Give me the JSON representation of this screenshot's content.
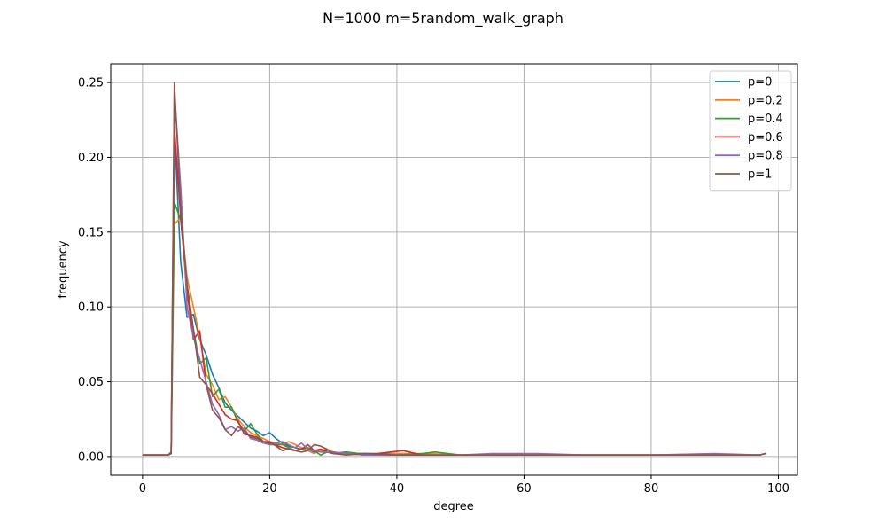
{
  "chart_data": {
    "type": "line",
    "title": "N=1000 m=5random_walk_graph",
    "xlabel": "degree",
    "ylabel": "frequency",
    "xlim": [
      -5,
      103
    ],
    "ylim": [
      -0.0125,
      0.2625
    ],
    "xticks": [
      0,
      20,
      40,
      60,
      80,
      100
    ],
    "xtick_labels": [
      "0",
      "20",
      "40",
      "60",
      "80",
      "100"
    ],
    "yticks": [
      0.0,
      0.05,
      0.1,
      0.15,
      0.2,
      0.25
    ],
    "ytick_labels": [
      "0.00",
      "0.05",
      "0.10",
      "0.15",
      "0.20",
      "0.25"
    ],
    "grid": true,
    "legend_position": "top-right",
    "series": [
      {
        "name": "p=0",
        "color": "#1f77b4",
        "points": [
          [
            0,
            0.001
          ],
          [
            4,
            0.001
          ],
          [
            4.5,
            0.003
          ],
          [
            5,
            0.22
          ],
          [
            6,
            0.13
          ],
          [
            7,
            0.093
          ],
          [
            8,
            0.095
          ],
          [
            9,
            0.078
          ],
          [
            10,
            0.068
          ],
          [
            11,
            0.055
          ],
          [
            12,
            0.046
          ],
          [
            13,
            0.036
          ],
          [
            14,
            0.031
          ],
          [
            15,
            0.027
          ],
          [
            16,
            0.023
          ],
          [
            17,
            0.019
          ],
          [
            18,
            0.017
          ],
          [
            19,
            0.014
          ],
          [
            20,
            0.016
          ],
          [
            21,
            0.012
          ],
          [
            22,
            0.009
          ],
          [
            23,
            0.007
          ],
          [
            24,
            0.006
          ],
          [
            25,
            0.005
          ],
          [
            26,
            0.004
          ],
          [
            27,
            0.003
          ],
          [
            28,
            0.004
          ],
          [
            29,
            0.003
          ],
          [
            30,
            0.002
          ],
          [
            32,
            0.003
          ],
          [
            34,
            0.002
          ],
          [
            36,
            0.002
          ],
          [
            40,
            0.002
          ],
          [
            45,
            0.001
          ],
          [
            50,
            0.001
          ],
          [
            60,
            0.001
          ],
          [
            70,
            0.001
          ],
          [
            80,
            0.001
          ],
          [
            90,
            0.001
          ],
          [
            97,
            0.001
          ],
          [
            98,
            0.002
          ]
        ]
      },
      {
        "name": "p=0.2",
        "color": "#ff7f0e",
        "points": [
          [
            0,
            0.001
          ],
          [
            4,
            0.001
          ],
          [
            4.5,
            0.002
          ],
          [
            5,
            0.155
          ],
          [
            6,
            0.16
          ],
          [
            7,
            0.12
          ],
          [
            8,
            0.1
          ],
          [
            9,
            0.08
          ],
          [
            10,
            0.055
          ],
          [
            11,
            0.048
          ],
          [
            12,
            0.038
          ],
          [
            13,
            0.04
          ],
          [
            14,
            0.033
          ],
          [
            15,
            0.025
          ],
          [
            16,
            0.02
          ],
          [
            17,
            0.016
          ],
          [
            18,
            0.014
          ],
          [
            19,
            0.012
          ],
          [
            20,
            0.01
          ],
          [
            22,
            0.008
          ],
          [
            23,
            0.01
          ],
          [
            24,
            0.008
          ],
          [
            25,
            0.006
          ],
          [
            26,
            0.004
          ],
          [
            27,
            0.002
          ],
          [
            28,
            0.004
          ],
          [
            29,
            0.005
          ],
          [
            30,
            0.003
          ],
          [
            32,
            0.002
          ],
          [
            34,
            0.002
          ],
          [
            36,
            0.001
          ],
          [
            40,
            0.002
          ],
          [
            45,
            0.002
          ],
          [
            50,
            0.001
          ],
          [
            60,
            0.001
          ],
          [
            70,
            0.001
          ],
          [
            80,
            0.001
          ],
          [
            90,
            0.001
          ],
          [
            97,
            0.001
          ],
          [
            98,
            0.002
          ]
        ]
      },
      {
        "name": "p=0.4",
        "color": "#2ca02c",
        "points": [
          [
            0,
            0.001
          ],
          [
            4,
            0.001
          ],
          [
            4.5,
            0.002
          ],
          [
            5,
            0.17
          ],
          [
            6,
            0.158
          ],
          [
            7,
            0.115
          ],
          [
            8,
            0.085
          ],
          [
            9,
            0.062
          ],
          [
            10,
            0.066
          ],
          [
            11,
            0.04
          ],
          [
            12,
            0.045
          ],
          [
            13,
            0.033
          ],
          [
            14,
            0.033
          ],
          [
            15,
            0.023
          ],
          [
            16,
            0.017
          ],
          [
            17,
            0.022
          ],
          [
            18,
            0.015
          ],
          [
            19,
            0.01
          ],
          [
            20,
            0.008
          ],
          [
            22,
            0.008
          ],
          [
            24,
            0.004
          ],
          [
            26,
            0.006
          ],
          [
            27,
            0.004
          ],
          [
            28,
            0.001
          ],
          [
            29,
            0.003
          ],
          [
            30,
            0.002
          ],
          [
            32,
            0.003
          ],
          [
            34,
            0.002
          ],
          [
            36,
            0.002
          ],
          [
            40,
            0.001
          ],
          [
            44,
            0.002
          ],
          [
            46,
            0.003
          ],
          [
            50,
            0.001
          ],
          [
            60,
            0.001
          ],
          [
            70,
            0.001
          ],
          [
            80,
            0.001
          ],
          [
            90,
            0.001
          ],
          [
            97,
            0.001
          ],
          [
            98,
            0.002
          ]
        ]
      },
      {
        "name": "p=0.6",
        "color": "#d62728",
        "points": [
          [
            0,
            0.001
          ],
          [
            4,
            0.001
          ],
          [
            4.5,
            0.002
          ],
          [
            5,
            0.22
          ],
          [
            6,
            0.16
          ],
          [
            7,
            0.11
          ],
          [
            8,
            0.078
          ],
          [
            9,
            0.084
          ],
          [
            10,
            0.048
          ],
          [
            11,
            0.042
          ],
          [
            12,
            0.035
          ],
          [
            13,
            0.028
          ],
          [
            14,
            0.025
          ],
          [
            15,
            0.024
          ],
          [
            16,
            0.015
          ],
          [
            17,
            0.014
          ],
          [
            18,
            0.013
          ],
          [
            19,
            0.01
          ],
          [
            20,
            0.009
          ],
          [
            22,
            0.006
          ],
          [
            24,
            0.004
          ],
          [
            25,
            0.005
          ],
          [
            26,
            0.008
          ],
          [
            27,
            0.004
          ],
          [
            28,
            0.005
          ],
          [
            30,
            0.002
          ],
          [
            32,
            0.002
          ],
          [
            35,
            0.001
          ],
          [
            41,
            0.004
          ],
          [
            44,
            0.001
          ],
          [
            50,
            0.001
          ],
          [
            60,
            0.001
          ],
          [
            70,
            0.001
          ],
          [
            80,
            0.001
          ],
          [
            90,
            0.001
          ],
          [
            97,
            0.001
          ],
          [
            98,
            0.002
          ]
        ]
      },
      {
        "name": "p=0.8",
        "color": "#9467bd",
        "points": [
          [
            0,
            0.001
          ],
          [
            4,
            0.001
          ],
          [
            4.5,
            0.002
          ],
          [
            5,
            0.245
          ],
          [
            6,
            0.18
          ],
          [
            7,
            0.1
          ],
          [
            8,
            0.08
          ],
          [
            9,
            0.065
          ],
          [
            10,
            0.05
          ],
          [
            11,
            0.035
          ],
          [
            12,
            0.028
          ],
          [
            13,
            0.018
          ],
          [
            14,
            0.02
          ],
          [
            15,
            0.017
          ],
          [
            16,
            0.019
          ],
          [
            17,
            0.012
          ],
          [
            18,
            0.011
          ],
          [
            19,
            0.009
          ],
          [
            20,
            0.008
          ],
          [
            22,
            0.01
          ],
          [
            24,
            0.006
          ],
          [
            25,
            0.009
          ],
          [
            26,
            0.005
          ],
          [
            28,
            0.003
          ],
          [
            30,
            0.003
          ],
          [
            32,
            0.002
          ],
          [
            35,
            0.001
          ],
          [
            40,
            0.001
          ],
          [
            50,
            0.001
          ],
          [
            55,
            0.002
          ],
          [
            60,
            0.002
          ],
          [
            62,
            0.002
          ],
          [
            70,
            0.001
          ],
          [
            80,
            0.001
          ],
          [
            90,
            0.002
          ],
          [
            97,
            0.001
          ],
          [
            98,
            0.002
          ]
        ]
      },
      {
        "name": "p=1",
        "color": "#8c564b",
        "points": [
          [
            0,
            0.001
          ],
          [
            4,
            0.001
          ],
          [
            4.5,
            0.002
          ],
          [
            5,
            0.25
          ],
          [
            6,
            0.165
          ],
          [
            7,
            0.115
          ],
          [
            8,
            0.085
          ],
          [
            9,
            0.053
          ],
          [
            10,
            0.048
          ],
          [
            11,
            0.031
          ],
          [
            12,
            0.026
          ],
          [
            13,
            0.018
          ],
          [
            14,
            0.014
          ],
          [
            15,
            0.02
          ],
          [
            16,
            0.017
          ],
          [
            17,
            0.013
          ],
          [
            18,
            0.012
          ],
          [
            19,
            0.01
          ],
          [
            20,
            0.01
          ],
          [
            21,
            0.007
          ],
          [
            22,
            0.004
          ],
          [
            23,
            0.005
          ],
          [
            24,
            0.004
          ],
          [
            25,
            0.003
          ],
          [
            26,
            0.004
          ],
          [
            27,
            0.008
          ],
          [
            28,
            0.007
          ],
          [
            29,
            0.005
          ],
          [
            30,
            0.002
          ],
          [
            32,
            0.001
          ],
          [
            35,
            0.002
          ],
          [
            40,
            0.001
          ],
          [
            50,
            0.001
          ],
          [
            60,
            0.001
          ],
          [
            70,
            0.001
          ],
          [
            80,
            0.001
          ],
          [
            90,
            0.001
          ],
          [
            97,
            0.001
          ],
          [
            98,
            0.002
          ]
        ]
      }
    ]
  }
}
